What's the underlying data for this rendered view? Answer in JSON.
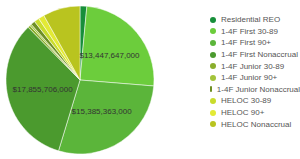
{
  "chart_data": {
    "type": "pie",
    "categories": [
      "Residential REO",
      "1-4F First 30-89",
      "1-4F First 90+",
      "1-4F First Nonaccrual",
      "1-4F Junior 30-89",
      "1-4F Junior 90+",
      "1-4F Junior Nonaccrual",
      "HELOC 30-89",
      "HELOC 90+",
      "HELOC Nonaccrual"
    ],
    "values": [
      800000000,
      13447647000,
      15385363000,
      17855706000,
      300000000,
      200000000,
      500000000,
      600000000,
      700000000,
      4400000000
    ],
    "value_labels": [
      null,
      "$13,447,647,000",
      "$15,385,363,000",
      "$17,855,706,000",
      null,
      null,
      null,
      null,
      null,
      null
    ],
    "data_labels": true,
    "colors": [
      "#178f3a",
      "#6ccd3c",
      "#5bb53a",
      "#4b9a2e",
      "#8aae2c",
      "#a3c43a",
      "#6e8f24",
      "#c9dc2c",
      "#e3ea35",
      "#b9c41f"
    ],
    "legend": "right"
  }
}
